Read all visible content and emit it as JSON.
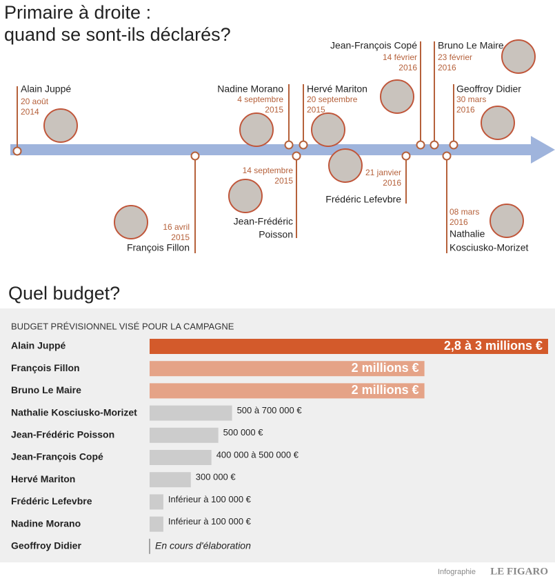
{
  "timeline": {
    "title": [
      "Primaire à droite :",
      "quand se sont-ils déclarés?"
    ],
    "events": [
      {
        "name": [
          "Alain Juppé"
        ],
        "date": [
          "20 août",
          "2014"
        ]
      },
      {
        "name": [
          "François Fillon"
        ],
        "date": [
          "16 avril",
          "2015"
        ]
      },
      {
        "name": [
          "Jean-Frédéric",
          "Poisson"
        ],
        "date": [
          "14 septembre",
          "2015"
        ]
      },
      {
        "name": [
          "Nadine Morano"
        ],
        "date": [
          "4 septembre",
          "2015"
        ]
      },
      {
        "name": [
          "Hervé Mariton"
        ],
        "date": [
          "20 septembre",
          "2015"
        ]
      },
      {
        "name": [
          "Frédéric Lefevbre"
        ],
        "date": [
          "21 janvier",
          "2016"
        ]
      },
      {
        "name": [
          "Jean-François Copé"
        ],
        "date": [
          "14 février",
          "2016"
        ]
      },
      {
        "name": [
          "Bruno Le Maire"
        ],
        "date": [
          "23 février",
          "2016"
        ]
      },
      {
        "name": [
          "Nathalie",
          "Kosciusko-Morizet"
        ],
        "date": [
          "08 mars",
          "2016"
        ]
      },
      {
        "name": [
          "Geoffroy Didier"
        ],
        "date": [
          "30 mars",
          "2016"
        ]
      }
    ]
  },
  "chart_data": {
    "type": "bar",
    "orientation": "horizontal",
    "title": "Quel budget?",
    "subtitle": "BUDGET PRÉVISIONNEL VISÉ POUR LA CAMPAGNE",
    "categories": [
      "Alain Juppé",
      "François Fillon",
      "Bruno Le Maire",
      "Nathalie Kosciusko-Morizet",
      "Jean-Frédéric Poisson",
      "Jean-François Copé",
      "Hervé Mariton",
      "Frédéric Lefevbre",
      "Nadine Morano",
      "Geoffroy Didier"
    ],
    "values": [
      2900000,
      2000000,
      2000000,
      600000,
      500000,
      450000,
      300000,
      100000,
      100000,
      null
    ],
    "value_labels": [
      "2,8 à 3 millions €",
      "2 millions €",
      "2 millions €",
      "500 à 700 000 €",
      "500 000 €",
      "400 000 à 500 000 €",
      "300 000 €",
      "Inférieur à 100 000 €",
      "Inférieur à 100 000 €",
      "En cours d'élaboration"
    ],
    "colors": [
      "#d35a2b",
      "#e5a387",
      "#e5a387",
      "#cccccc",
      "#cccccc",
      "#cccccc",
      "#cccccc",
      "#cccccc",
      "#cccccc",
      "#cccccc"
    ]
  },
  "footer": {
    "credit": "Infographie",
    "brand": "LE FIGARO"
  }
}
